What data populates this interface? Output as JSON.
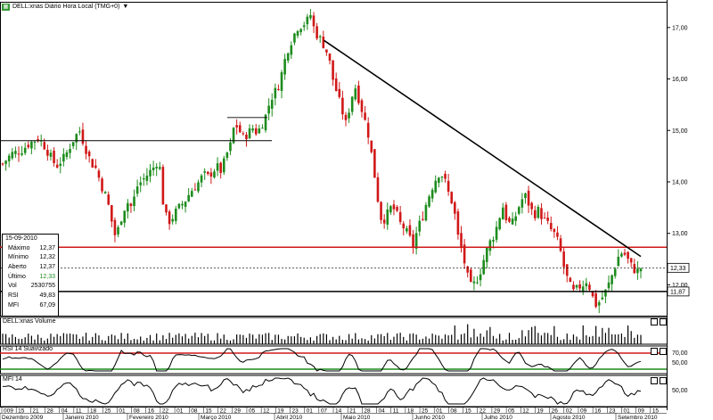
{
  "header": {
    "title": "DELL:xnas Diário Hora Local (TMG+0)",
    "arrow": "▼"
  },
  "info_box": {
    "date": "15-09-2010",
    "rows": [
      {
        "label": "Máximo",
        "value": "12,37"
      },
      {
        "label": "Mínimo",
        "value": "12,32"
      },
      {
        "label": "Aberto",
        "value": "12,37"
      },
      {
        "label": "Último",
        "value": "12,33"
      },
      {
        "label": "Vol",
        "value": "2530755"
      },
      {
        "label": "RSI",
        "value": "49,83"
      },
      {
        "label": "MFI",
        "value": "67,09"
      }
    ]
  },
  "panels": {
    "volume": "DELL:xnas Volume",
    "rsi": "RSI 14 Suavizado",
    "mfi": "MFI 14"
  },
  "colors": {
    "up": "#1d8c1d",
    "down": "#d01818",
    "trend": "#000000",
    "resistance": "#d01818"
  },
  "chart_data": {
    "type": "candlestick",
    "title": "DELL:xnas Diário Hora Local (TMG+0)",
    "ylim": [
      11.4,
      17.5
    ],
    "yticks": [
      "17,00",
      "16,00",
      "15,00",
      "14,00",
      "13,00",
      "12,00"
    ],
    "price_labels": {
      "last": "12,33",
      "support": "11,87"
    },
    "levels": {
      "resistance": 12.73,
      "support": 11.87,
      "last": 12.33,
      "early_high": 14.8
    },
    "trendline": {
      "from": {
        "date": "2010-04-22",
        "price": 16.75
      },
      "to": {
        "date": "2010-09-15",
        "price": 12.55
      }
    },
    "rsi_levels": {
      "upper": "70,00",
      "mid": "50,00"
    },
    "mfi_levels": {
      "mid": "50,00"
    },
    "month_labels": [
      "Dezembro 2009",
      "Janeiro 2010",
      "Fevereiro 2010",
      "Março 2010",
      "Abril 2010",
      "Maio 2010",
      "Junho 2010",
      "Julho 2010",
      "Agosto 2010",
      "Setembro 2010"
    ],
    "day_labels": [
      "009",
      "15",
      "21",
      "28",
      "04",
      "11",
      "18",
      "25",
      "01",
      "08",
      "16",
      "22",
      "01",
      "08",
      "15",
      "22",
      "29",
      "05",
      "12",
      "19",
      "23",
      "01",
      "07",
      "14",
      "21",
      "28",
      "04",
      "11",
      "18",
      "25",
      "01",
      "08",
      "15",
      "22",
      "29",
      "05",
      "12",
      "19",
      "26",
      "02",
      "09",
      "16",
      "23",
      "01",
      "09",
      "15"
    ],
    "close_path": [
      [
        0,
        14.35
      ],
      [
        10,
        14.55
      ],
      [
        20,
        14.6
      ],
      [
        30,
        14.75
      ],
      [
        40,
        14.85
      ],
      [
        45,
        14.75
      ],
      [
        50,
        14.6
      ],
      [
        55,
        14.45
      ],
      [
        60,
        14.3
      ],
      [
        70,
        14.5
      ],
      [
        80,
        14.85
      ],
      [
        86,
        15.0
      ],
      [
        90,
        14.8
      ],
      [
        95,
        14.55
      ],
      [
        100,
        14.35
      ],
      [
        105,
        14.25
      ],
      [
        110,
        13.95
      ],
      [
        115,
        13.75
      ],
      [
        120,
        13.45
      ],
      [
        125,
        12.95
      ],
      [
        130,
        13.1
      ],
      [
        135,
        13.45
      ],
      [
        140,
        13.6
      ],
      [
        145,
        13.5
      ],
      [
        150,
        13.9
      ],
      [
        155,
        14.0
      ],
      [
        160,
        14.1
      ],
      [
        165,
        14.2
      ],
      [
        170,
        14.3
      ],
      [
        175,
        14.45
      ],
      [
        180,
        13.55
      ],
      [
        185,
        13.2
      ],
      [
        190,
        13.3
      ],
      [
        195,
        13.45
      ],
      [
        200,
        13.55
      ],
      [
        205,
        13.65
      ],
      [
        210,
        13.8
      ],
      [
        215,
        13.9
      ],
      [
        220,
        14.0
      ],
      [
        225,
        14.15
      ],
      [
        230,
        14.1
      ],
      [
        235,
        14.2
      ],
      [
        240,
        14.3
      ],
      [
        245,
        14.2
      ],
      [
        250,
        14.5
      ],
      [
        255,
        14.7
      ],
      [
        260,
        15.15
      ],
      [
        265,
        15.0
      ],
      [
        270,
        14.85
      ],
      [
        275,
        14.95
      ],
      [
        280,
        15.05
      ],
      [
        285,
        14.95
      ],
      [
        290,
        15.1
      ],
      [
        295,
        15.3
      ],
      [
        300,
        15.6
      ],
      [
        305,
        15.75
      ],
      [
        310,
        15.9
      ],
      [
        315,
        16.3
      ],
      [
        320,
        16.6
      ],
      [
        325,
        16.8
      ],
      [
        330,
        17.0
      ],
      [
        335,
        17.05
      ],
      [
        340,
        17.1
      ],
      [
        345,
        17.25
      ],
      [
        350,
        16.9
      ],
      [
        355,
        16.8
      ],
      [
        360,
        16.65
      ],
      [
        365,
        16.45
      ],
      [
        370,
        16.0
      ],
      [
        375,
        15.7
      ],
      [
        380,
        15.4
      ],
      [
        385,
        15.1
      ],
      [
        390,
        15.6
      ],
      [
        395,
        15.85
      ],
      [
        400,
        15.55
      ],
      [
        405,
        15.25
      ],
      [
        410,
        14.9
      ],
      [
        415,
        14.35
      ],
      [
        420,
        13.7
      ],
      [
        425,
        13.2
      ],
      [
        430,
        13.35
      ],
      [
        435,
        13.5
      ],
      [
        440,
        13.45
      ],
      [
        445,
        13.2
      ],
      [
        450,
        13.1
      ],
      [
        455,
        12.95
      ],
      [
        460,
        12.75
      ],
      [
        465,
        13.1
      ],
      [
        470,
        13.3
      ],
      [
        475,
        13.6
      ],
      [
        480,
        13.85
      ],
      [
        485,
        14.05
      ],
      [
        490,
        14.2
      ],
      [
        495,
        14.05
      ],
      [
        500,
        13.75
      ],
      [
        505,
        13.55
      ],
      [
        510,
        12.95
      ],
      [
        515,
        12.65
      ],
      [
        520,
        12.2
      ],
      [
        525,
        11.95
      ],
      [
        530,
        12.05
      ],
      [
        535,
        12.25
      ],
      [
        540,
        12.55
      ],
      [
        545,
        12.8
      ],
      [
        550,
        12.95
      ],
      [
        555,
        13.2
      ],
      [
        560,
        13.55
      ],
      [
        565,
        13.25
      ],
      [
        570,
        13.15
      ],
      [
        575,
        13.35
      ],
      [
        580,
        13.6
      ],
      [
        585,
        13.75
      ],
      [
        590,
        13.55
      ],
      [
        595,
        13.35
      ],
      [
        600,
        13.45
      ],
      [
        605,
        13.3
      ],
      [
        610,
        13.2
      ],
      [
        615,
        13.05
      ],
      [
        620,
        12.95
      ],
      [
        625,
        12.65
      ],
      [
        630,
        12.25
      ],
      [
        635,
        12.0
      ],
      [
        640,
        11.85
      ],
      [
        645,
        11.95
      ],
      [
        650,
        12.0
      ],
      [
        655,
        12.1
      ],
      [
        660,
        11.8
      ],
      [
        665,
        11.6
      ],
      [
        670,
        11.7
      ],
      [
        675,
        11.85
      ],
      [
        680,
        12.05
      ],
      [
        685,
        12.3
      ],
      [
        690,
        12.55
      ],
      [
        695,
        12.65
      ],
      [
        700,
        12.5
      ],
      [
        705,
        12.35
      ],
      [
        710,
        12.25
      ],
      [
        715,
        12.33
      ]
    ]
  }
}
